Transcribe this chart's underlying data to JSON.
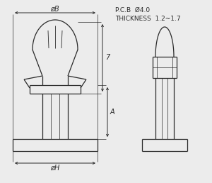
{
  "bg_color": "#ececec",
  "line_color": "#2a2a2a",
  "text_color": "#2a2a2a",
  "title_line1": "P.C.B  Ø4.0",
  "title_line2": "THICKNESS  1.2~1.7",
  "label_B": "øB",
  "label_H": "øH",
  "label_7": "7",
  "label_A": "A"
}
